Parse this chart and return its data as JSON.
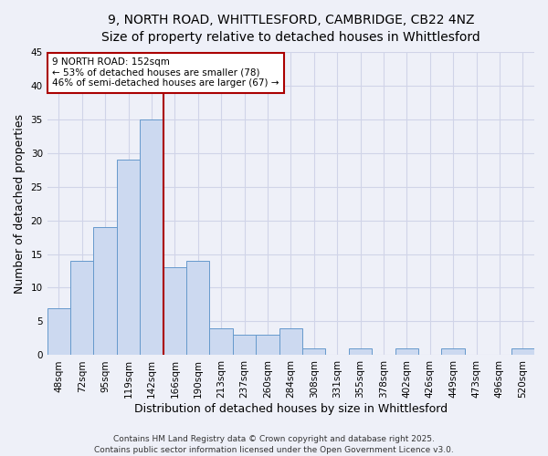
{
  "title_line1": "9, NORTH ROAD, WHITTLESFORD, CAMBRIDGE, CB22 4NZ",
  "title_line2": "Size of property relative to detached houses in Whittlesford",
  "xlabel": "Distribution of detached houses by size in Whittlesford",
  "ylabel": "Number of detached properties",
  "bar_color": "#ccd9f0",
  "bar_edge_color": "#6699cc",
  "categories": [
    "48sqm",
    "72sqm",
    "95sqm",
    "119sqm",
    "142sqm",
    "166sqm",
    "190sqm",
    "213sqm",
    "237sqm",
    "260sqm",
    "284sqm",
    "308sqm",
    "331sqm",
    "355sqm",
    "378sqm",
    "402sqm",
    "426sqm",
    "449sqm",
    "473sqm",
    "496sqm",
    "520sqm"
  ],
  "values": [
    7,
    14,
    19,
    29,
    35,
    13,
    14,
    4,
    3,
    3,
    4,
    1,
    0,
    1,
    0,
    1,
    0,
    1,
    0,
    0,
    1
  ],
  "vline_x": 5,
  "vline_color": "#aa0000",
  "annotation_text": "9 NORTH ROAD: 152sqm\n← 53% of detached houses are smaller (78)\n46% of semi-detached houses are larger (67) →",
  "annotation_box_color": "white",
  "annotation_edge_color": "#aa0000",
  "ylim": [
    0,
    45
  ],
  "yticks": [
    0,
    5,
    10,
    15,
    20,
    25,
    30,
    35,
    40,
    45
  ],
  "footer_line1": "Contains HM Land Registry data © Crown copyright and database right 2025.",
  "footer_line2": "Contains public sector information licensed under the Open Government Licence v3.0.",
  "background_color": "#eef0f8",
  "grid_color": "#d0d4e8",
  "title_fontsize": 10,
  "subtitle_fontsize": 9.5,
  "axis_label_fontsize": 9,
  "tick_fontsize": 7.5,
  "annotation_fontsize": 7.5,
  "footer_fontsize": 6.5
}
